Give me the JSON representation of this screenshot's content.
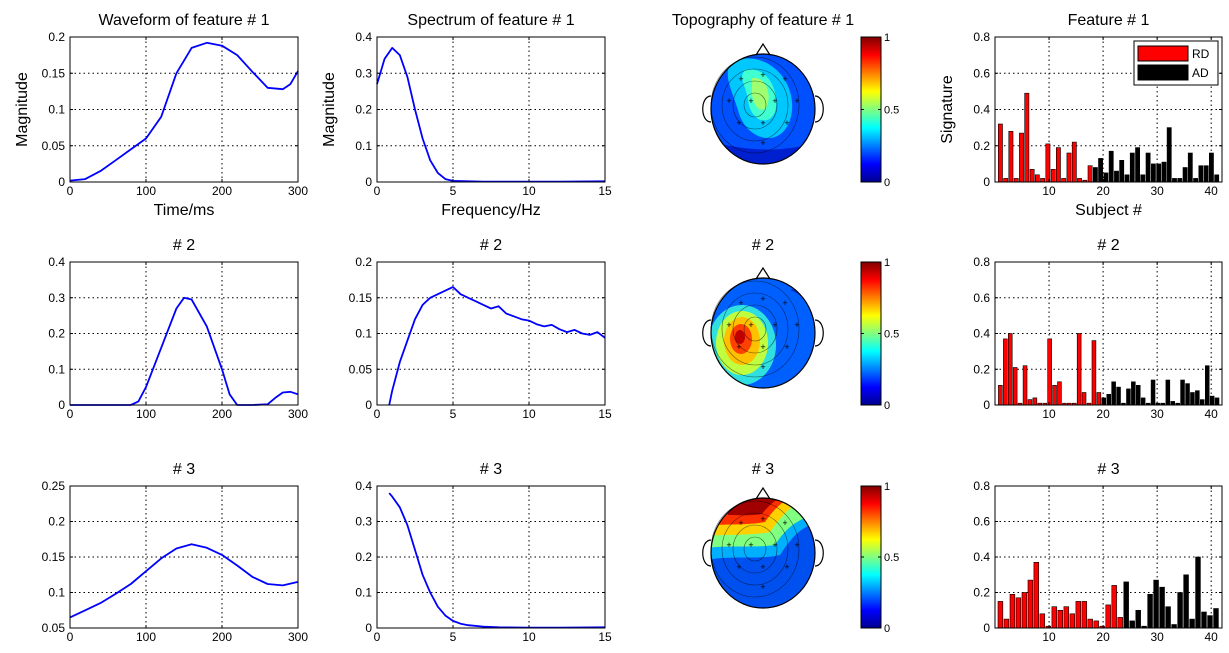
{
  "chart_data": [
    {
      "type": "line",
      "title": "Waveform of feature # 1",
      "xlabel": "Time/ms",
      "ylabel": "Magnitude",
      "xlim": [
        0,
        300
      ],
      "ylim": [
        0,
        0.2
      ],
      "xticks": [
        0,
        100,
        200,
        300
      ],
      "yticks": [
        0,
        0.05,
        0.1,
        0.15,
        0.2
      ],
      "grid": true,
      "line_color": "#0000ff",
      "series": [
        {
          "x": [
            0,
            20,
            40,
            60,
            80,
            100,
            120,
            140,
            160,
            180,
            200,
            220,
            240,
            260,
            280,
            290,
            300
          ],
          "y": [
            0.002,
            0.004,
            0.015,
            0.03,
            0.045,
            0.06,
            0.09,
            0.15,
            0.185,
            0.192,
            0.188,
            0.175,
            0.152,
            0.13,
            0.128,
            0.135,
            0.153
          ]
        }
      ]
    },
    {
      "type": "line",
      "title": "Spectrum of feature # 1",
      "xlabel": "Frequency/Hz",
      "ylabel": "Magnitude",
      "xlim": [
        0,
        15
      ],
      "ylim": [
        0,
        0.4
      ],
      "xticks": [
        0,
        5,
        10,
        15
      ],
      "yticks": [
        0,
        0.1,
        0.2,
        0.3,
        0.4
      ],
      "grid": true,
      "line_color": "#0000ff",
      "series": [
        {
          "x": [
            0,
            0.5,
            1,
            1.5,
            2,
            2.5,
            3,
            3.5,
            4,
            4.5,
            5,
            6,
            7,
            8,
            10,
            12,
            15
          ],
          "y": [
            0.27,
            0.34,
            0.37,
            0.35,
            0.29,
            0.2,
            0.12,
            0.06,
            0.025,
            0.008,
            0.003,
            0.002,
            0.001,
            0.001,
            0.001,
            0.001,
            0.002
          ]
        }
      ]
    },
    {
      "type": "heatmap",
      "title": "Topography of feature # 1",
      "colorbar_ticks": [
        0,
        0.5,
        1
      ]
    },
    {
      "type": "bar",
      "title": "Feature # 1",
      "xlabel": "Subject #",
      "ylabel": "Signature",
      "xlim": [
        0,
        42
      ],
      "ylim": [
        0,
        0.8
      ],
      "xticks": [
        10,
        20,
        30,
        40
      ],
      "yticks": [
        0,
        0.2,
        0.4,
        0.6,
        0.8
      ],
      "grid": true,
      "legend": {
        "position": "top-right",
        "items": [
          {
            "label": "RD",
            "color": "#ff0000"
          },
          {
            "label": "AD",
            "color": "#000000"
          }
        ]
      },
      "split_at": 18,
      "values": [
        0.32,
        0.02,
        0.28,
        0.02,
        0.27,
        0.49,
        0.07,
        0.04,
        0.02,
        0.21,
        0.07,
        0.19,
        0.02,
        0.16,
        0.22,
        0.02,
        0.01,
        0.09,
        0.08,
        0.13,
        0.05,
        0.17,
        0.06,
        0.12,
        0.04,
        0.16,
        0.19,
        0.04,
        0.16,
        0.1,
        0.1,
        0.11,
        0.3,
        0.02,
        0.02,
        0.08,
        0.16,
        0.02,
        0.09,
        0.09,
        0.16,
        0.04
      ]
    },
    {
      "type": "line",
      "title": "# 2",
      "xlim": [
        0,
        300
      ],
      "ylim": [
        0,
        0.4
      ],
      "xticks": [
        0,
        100,
        200,
        300
      ],
      "yticks": [
        0,
        0.1,
        0.2,
        0.3,
        0.4
      ],
      "grid": true,
      "line_color": "#0000ff",
      "series": [
        {
          "x": [
            0,
            60,
            80,
            90,
            100,
            120,
            140,
            150,
            160,
            180,
            200,
            210,
            220,
            240,
            260,
            270,
            280,
            290,
            300
          ],
          "y": [
            0,
            0,
            0,
            0.01,
            0.05,
            0.16,
            0.27,
            0.3,
            0.295,
            0.22,
            0.1,
            0.03,
            0,
            0,
            0.002,
            0.02,
            0.035,
            0.037,
            0.03
          ]
        }
      ]
    },
    {
      "type": "line",
      "title": "# 2",
      "xlim": [
        0,
        15
      ],
      "ylim": [
        0,
        0.2
      ],
      "xticks": [
        0,
        5,
        10,
        15
      ],
      "yticks": [
        0,
        0.05,
        0.1,
        0.15,
        0.2
      ],
      "grid": true,
      "line_color": "#0000ff",
      "series": [
        {
          "x": [
            0.8,
            1,
            1.5,
            2,
            2.5,
            3,
            3.5,
            4,
            4.5,
            5,
            5.5,
            6,
            6.5,
            7,
            7.5,
            8,
            8.5,
            9,
            9.5,
            10,
            10.5,
            11,
            11.5,
            12,
            12.5,
            13,
            13.5,
            14,
            14.5,
            15
          ],
          "y": [
            0,
            0.02,
            0.06,
            0.09,
            0.12,
            0.14,
            0.15,
            0.155,
            0.16,
            0.165,
            0.155,
            0.15,
            0.145,
            0.14,
            0.135,
            0.138,
            0.128,
            0.124,
            0.12,
            0.118,
            0.113,
            0.11,
            0.112,
            0.106,
            0.102,
            0.105,
            0.1,
            0.098,
            0.102,
            0.094
          ]
        }
      ]
    },
    {
      "type": "heatmap",
      "title": "# 2",
      "colorbar_ticks": [
        0,
        0.5,
        1
      ]
    },
    {
      "type": "bar",
      "title": "# 2",
      "xlim": [
        0,
        42
      ],
      "ylim": [
        0,
        0.8
      ],
      "xticks": [
        10,
        20,
        30,
        40
      ],
      "yticks": [
        0,
        0.2,
        0.4,
        0.6,
        0.8
      ],
      "grid": true,
      "split_at": 21,
      "values": [
        0.11,
        0.37,
        0.4,
        0.21,
        0.01,
        0.22,
        0.03,
        0.04,
        0.01,
        0.01,
        0.37,
        0.11,
        0.13,
        0.01,
        0.01,
        0.01,
        0.4,
        0.07,
        0.01,
        0.36,
        0.07,
        0.04,
        0.06,
        0.13,
        0.1,
        0.01,
        0.09,
        0.13,
        0.11,
        0.04,
        0.01,
        0.14,
        0.01,
        0.01,
        0.14,
        0.02,
        0.01,
        0.14,
        0.12,
        0.07,
        0.08,
        0.03,
        0.22,
        0.05,
        0.04
      ]
    },
    {
      "type": "line",
      "title": "# 3",
      "xlim": [
        0,
        300
      ],
      "ylim": [
        0.05,
        0.25
      ],
      "xticks": [
        0,
        100,
        200,
        300
      ],
      "yticks": [
        0.05,
        0.1,
        0.15,
        0.2,
        0.25
      ],
      "grid": true,
      "line_color": "#0000ff",
      "series": [
        {
          "x": [
            0,
            20,
            40,
            60,
            80,
            100,
            120,
            140,
            160,
            180,
            200,
            220,
            240,
            260,
            280,
            300
          ],
          "y": [
            0.065,
            0.075,
            0.085,
            0.098,
            0.112,
            0.13,
            0.148,
            0.162,
            0.168,
            0.163,
            0.153,
            0.138,
            0.122,
            0.112,
            0.11,
            0.115
          ]
        }
      ]
    },
    {
      "type": "line",
      "title": "# 3",
      "xlim": [
        0,
        15
      ],
      "ylim": [
        0,
        0.4
      ],
      "xticks": [
        0,
        5,
        10,
        15
      ],
      "yticks": [
        0,
        0.1,
        0.2,
        0.3,
        0.4
      ],
      "grid": true,
      "line_color": "#0000ff",
      "series": [
        {
          "x": [
            0.8,
            1,
            1.5,
            2,
            2.5,
            3,
            3.5,
            4,
            4.5,
            5,
            5.5,
            6,
            7,
            8,
            10,
            12,
            15
          ],
          "y": [
            0.38,
            0.37,
            0.34,
            0.29,
            0.22,
            0.15,
            0.1,
            0.06,
            0.035,
            0.02,
            0.012,
            0.008,
            0.004,
            0.002,
            0.001,
            0.001,
            0.002
          ]
        }
      ]
    },
    {
      "type": "heatmap",
      "title": "# 3",
      "colorbar_ticks": [
        0,
        0.5,
        1
      ]
    },
    {
      "type": "bar",
      "title": "# 3",
      "xlim": [
        0,
        42
      ],
      "ylim": [
        0,
        0.8
      ],
      "xticks": [
        10,
        20,
        30,
        40
      ],
      "yticks": [
        0,
        0.2,
        0.4,
        0.6,
        0.8
      ],
      "grid": true,
      "split_at": 21,
      "values": [
        0.15,
        0.05,
        0.19,
        0.17,
        0.2,
        0.27,
        0.37,
        0.08,
        0.01,
        0.12,
        0.1,
        0.12,
        0.08,
        0.15,
        0.15,
        0.05,
        0.04,
        0.01,
        0.13,
        0.24,
        0.06,
        0.26,
        0.04,
        0.1,
        0.01,
        0.19,
        0.27,
        0.23,
        0.12,
        0.02,
        0.2,
        0.3,
        0.05,
        0.4,
        0.09,
        0.07,
        0.11
      ]
    }
  ]
}
